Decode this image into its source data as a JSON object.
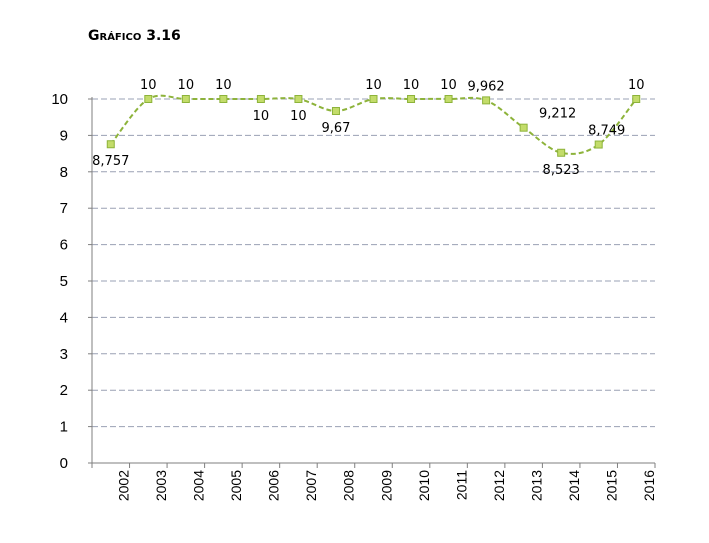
{
  "chart_data": {
    "type": "line",
    "title": "Gráfico 3.16",
    "xlabel": "",
    "ylabel": "",
    "ylim": [
      0,
      10
    ],
    "y_ticks": [
      0,
      1,
      2,
      3,
      4,
      5,
      6,
      7,
      8,
      9,
      10
    ],
    "categories": [
      "2002",
      "2003",
      "2004",
      "2005",
      "2006",
      "2007",
      "2008",
      "2009",
      "2010",
      "2011",
      "2012",
      "2013",
      "2014",
      "2015",
      "2016"
    ],
    "series": [
      {
        "values": [
          8.757,
          10,
          10,
          10,
          10,
          10,
          9.67,
          10,
          10,
          10,
          9.962,
          9.212,
          8.523,
          8.749,
          10
        ],
        "labels": [
          "8,757",
          "10",
          "10",
          "10",
          "10",
          "10",
          "9,67",
          "10",
          "10",
          "10",
          "9,962",
          "9,212",
          "8,523",
          "8,749",
          "10"
        ]
      }
    ],
    "grid": true,
    "colors": {
      "line": "#8db33a",
      "marker_fill": "#c3dc6a",
      "marker_stroke": "#8db33a",
      "grid": "#9aa0b4",
      "axis": "#7f7f7f"
    }
  }
}
